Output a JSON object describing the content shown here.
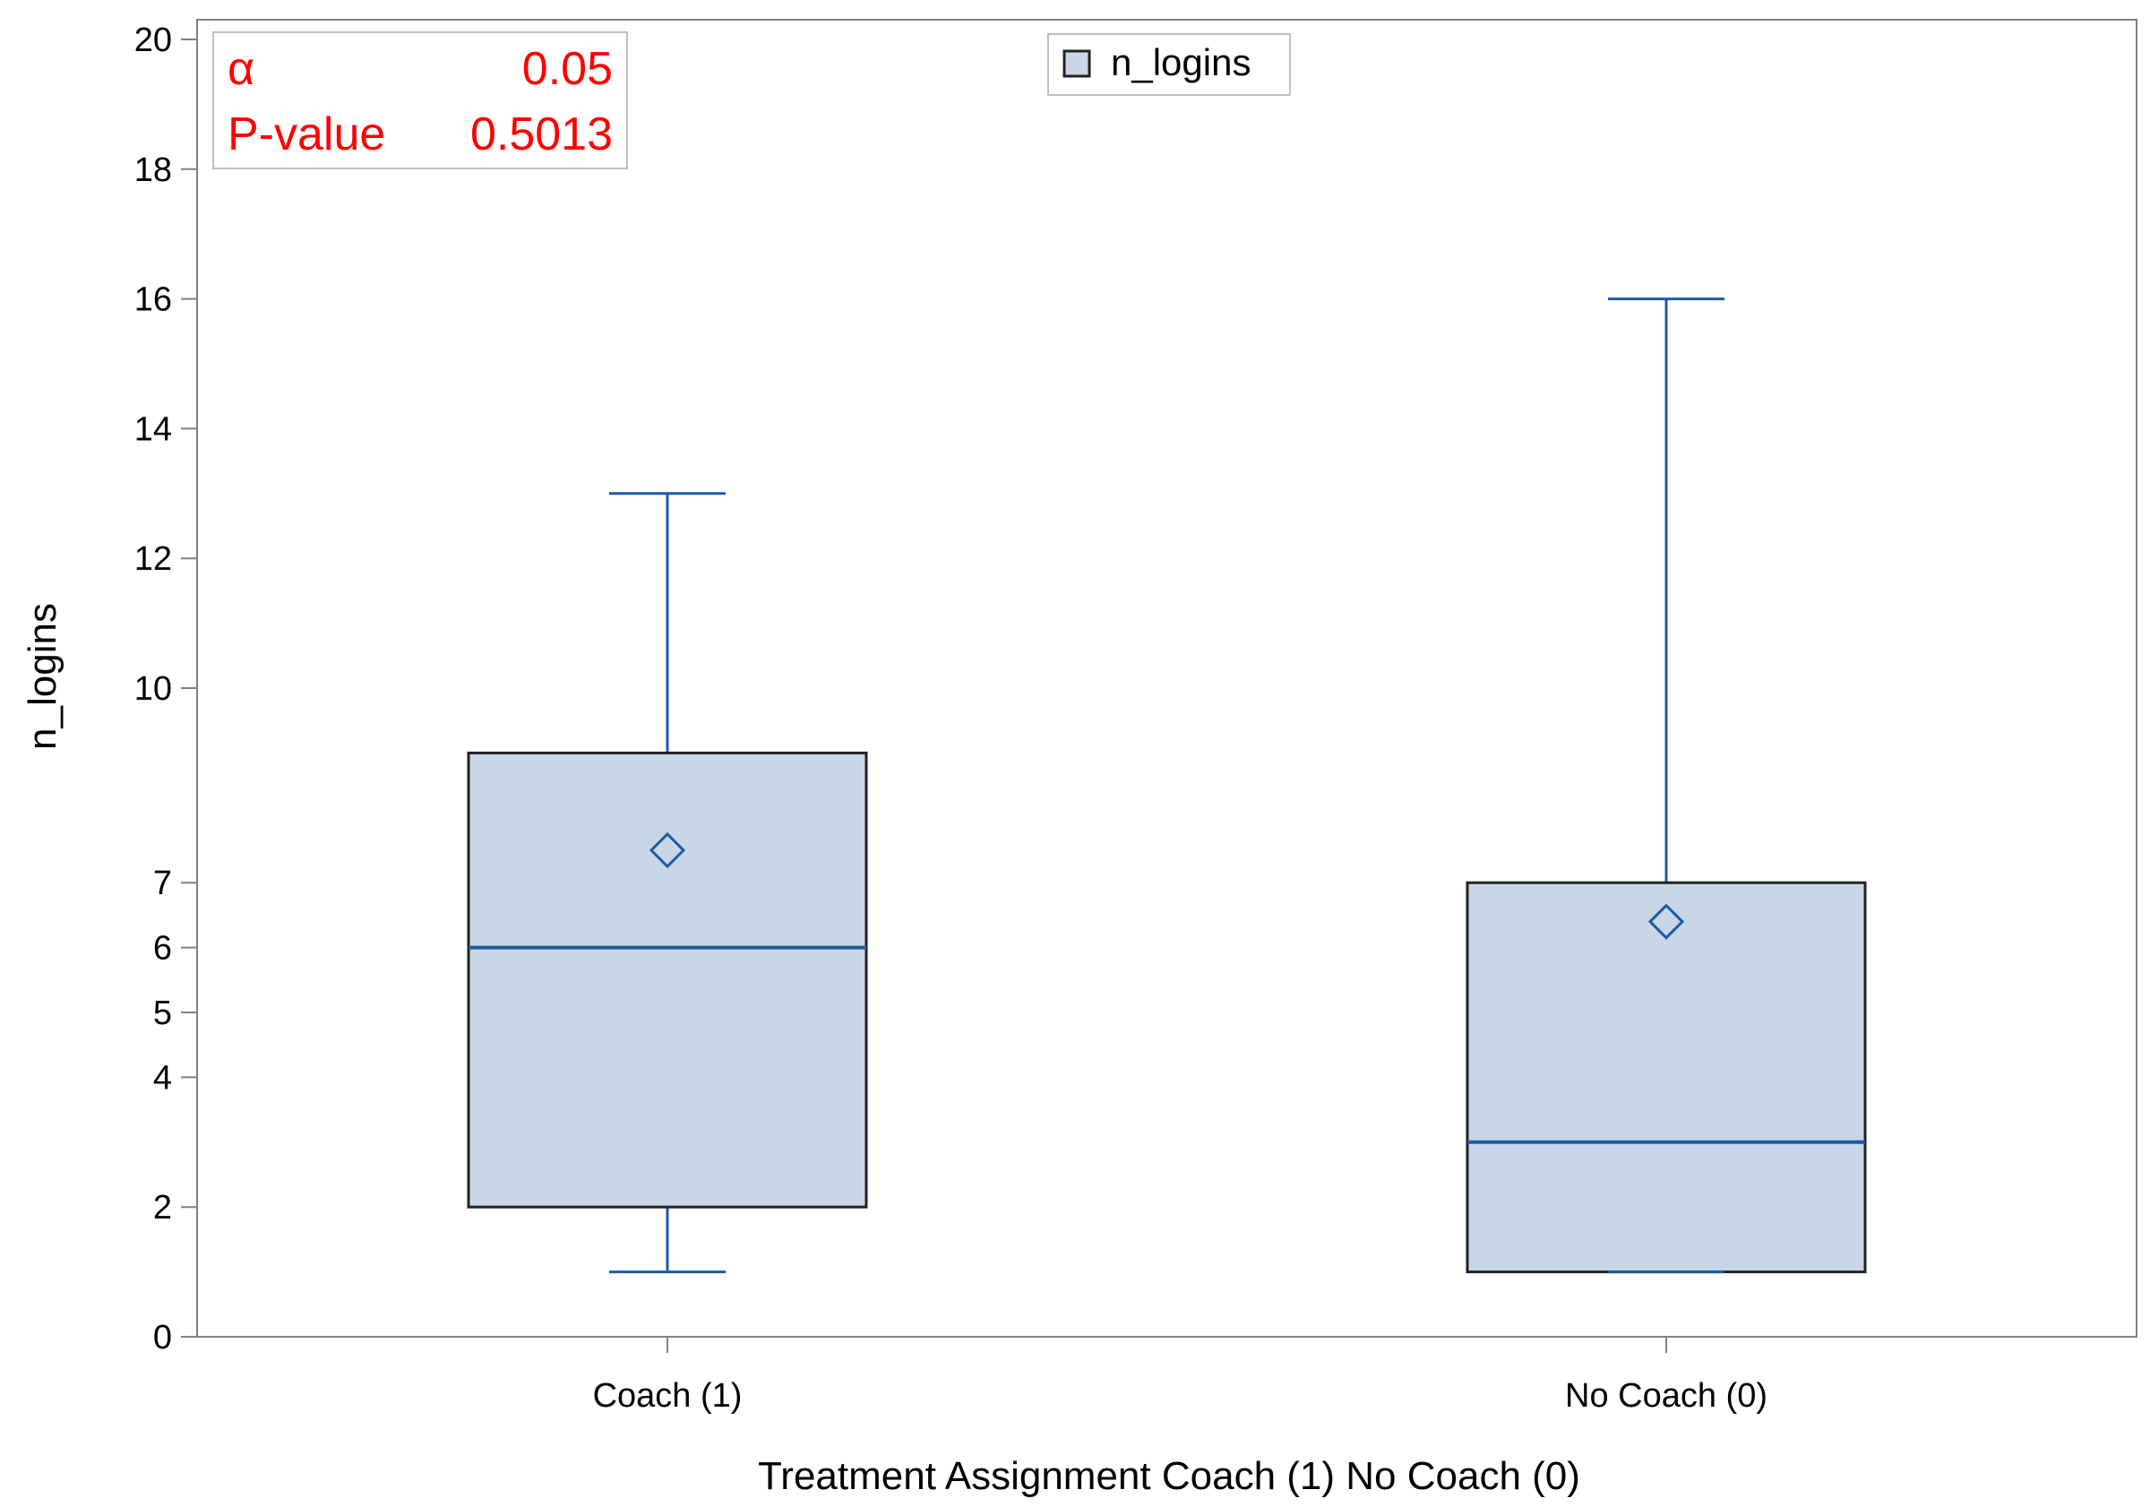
{
  "chart_data": {
    "type": "box",
    "xlabel": "Treatment Assignment Coach (1) No Coach (0)",
    "ylabel": "n_logins",
    "y_ticks": [
      0,
      2,
      4,
      5,
      6,
      7,
      10,
      12,
      14,
      16,
      18,
      20
    ],
    "ylim": [
      0,
      20
    ],
    "categories": [
      "Coach (1)",
      "No Coach (0)"
    ],
    "series": [
      {
        "name": "n_logins",
        "boxes": [
          {
            "category": "Coach (1)",
            "whisker_low": 1,
            "q1": 2,
            "median": 6,
            "q3": 9,
            "whisker_high": 13,
            "mean": 7.5
          },
          {
            "category": "No Coach (0)",
            "whisker_low": 1,
            "q1": 1,
            "median": 3,
            "q3": 7,
            "whisker_high": 16,
            "mean": 6.4
          }
        ]
      }
    ],
    "stats": {
      "alpha_label": "α",
      "alpha_value": "0.05",
      "pvalue_label": "P-value",
      "pvalue_value": "0.5013"
    },
    "legend": {
      "label": "n_logins",
      "position": "top-center"
    },
    "grid": false,
    "colors": {
      "box_fill": "#c8d6e6",
      "box_border": "#222222",
      "line": "#1c5aa6",
      "stat_text": "#ff0000",
      "axis": "#808080"
    }
  }
}
